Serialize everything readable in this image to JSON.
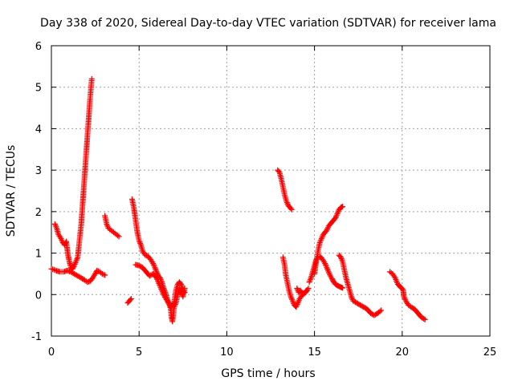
{
  "chart_data": {
    "type": "scatter",
    "title": "Day 338 of 2020, Sidereal Day-to-day VTEC variation (SDTVAR) for receiver lama",
    "xlabel": "GPS time / hours",
    "ylabel": "SDTVAR / TECUs",
    "xlim": [
      0,
      25
    ],
    "ylim": [
      -1,
      6
    ],
    "xticks": [
      "0",
      "5",
      "10",
      "15",
      "20",
      "25"
    ],
    "yticks": [
      "-1",
      "0",
      "1",
      "2",
      "3",
      "4",
      "5",
      "6"
    ],
    "xtick_values": [
      0,
      5,
      10,
      15,
      20,
      25
    ],
    "ytick_values": [
      -1,
      0,
      1,
      2,
      3,
      4,
      5,
      6
    ],
    "grid": true,
    "marker": "+",
    "color": "#ff0000",
    "segments": [
      [
        [
          0.0,
          0.62
        ],
        [
          0.15,
          0.6
        ],
        [
          0.3,
          0.57
        ],
        [
          0.5,
          0.55
        ],
        [
          0.7,
          0.55
        ],
        [
          0.9,
          0.58
        ],
        [
          1.1,
          0.55
        ],
        [
          1.3,
          0.5
        ],
        [
          1.5,
          0.45
        ],
        [
          1.7,
          0.4
        ],
        [
          1.9,
          0.35
        ],
        [
          2.05,
          0.3
        ],
        [
          2.2,
          0.32
        ],
        [
          2.35,
          0.4
        ],
        [
          2.5,
          0.5
        ],
        [
          2.6,
          0.58
        ],
        [
          2.75,
          0.55
        ],
        [
          2.9,
          0.5
        ],
        [
          3.05,
          0.47
        ]
      ],
      [
        [
          0.2,
          1.7
        ],
        [
          0.3,
          1.6
        ],
        [
          0.4,
          1.45
        ],
        [
          0.55,
          1.35
        ],
        [
          0.65,
          1.25
        ],
        [
          0.75,
          1.2
        ],
        [
          0.85,
          1.28
        ],
        [
          0.9,
          1.1
        ],
        [
          0.95,
          0.95
        ],
        [
          1.0,
          0.85
        ],
        [
          1.05,
          0.75
        ],
        [
          1.12,
          0.65
        ],
        [
          1.2,
          0.62
        ],
        [
          1.3,
          0.7
        ],
        [
          1.4,
          0.8
        ],
        [
          1.5,
          0.9
        ],
        [
          1.55,
          1.1
        ],
        [
          1.6,
          1.3
        ],
        [
          1.65,
          1.5
        ],
        [
          1.7,
          1.7
        ],
        [
          1.75,
          2.0
        ],
        [
          1.8,
          2.3
        ],
        [
          1.85,
          2.6
        ],
        [
          1.9,
          2.9
        ],
        [
          1.95,
          3.2
        ],
        [
          2.0,
          3.5
        ],
        [
          2.05,
          3.8
        ],
        [
          2.1,
          4.1
        ],
        [
          2.15,
          4.4
        ],
        [
          2.2,
          4.7
        ],
        [
          2.25,
          4.95
        ],
        [
          2.3,
          5.2
        ]
      ],
      [
        [
          3.05,
          1.9
        ],
        [
          3.15,
          1.7
        ],
        [
          3.25,
          1.6
        ],
        [
          3.4,
          1.55
        ],
        [
          3.55,
          1.5
        ],
        [
          3.7,
          1.45
        ],
        [
          3.85,
          1.4
        ]
      ],
      [
        [
          4.35,
          -0.2
        ],
        [
          4.45,
          -0.15
        ],
        [
          4.55,
          -0.1
        ]
      ],
      [
        [
          4.6,
          2.3
        ],
        [
          4.7,
          2.1
        ],
        [
          4.8,
          1.8
        ],
        [
          4.9,
          1.5
        ],
        [
          5.0,
          1.3
        ],
        [
          5.1,
          1.2
        ],
        [
          5.2,
          1.05
        ],
        [
          5.35,
          0.95
        ],
        [
          5.5,
          0.93
        ],
        [
          5.65,
          0.85
        ],
        [
          5.8,
          0.75
        ],
        [
          5.9,
          0.65
        ],
        [
          6.0,
          0.55
        ],
        [
          6.1,
          0.45
        ],
        [
          6.2,
          0.4
        ],
        [
          6.3,
          0.3
        ],
        [
          6.4,
          0.15
        ],
        [
          6.5,
          0.05
        ],
        [
          6.6,
          -0.1
        ],
        [
          6.7,
          -0.2
        ],
        [
          6.8,
          -0.35
        ],
        [
          6.85,
          -0.55
        ],
        [
          6.9,
          -0.65
        ],
        [
          6.95,
          -0.5
        ],
        [
          7.0,
          -0.3
        ],
        [
          7.1,
          -0.2
        ],
        [
          7.2,
          0.0
        ],
        [
          7.3,
          0.15
        ],
        [
          7.4,
          0.05
        ],
        [
          7.5,
          -0.05
        ],
        [
          7.6,
          0.15
        ]
      ],
      [
        [
          4.8,
          0.72
        ],
        [
          5.0,
          0.7
        ],
        [
          5.2,
          0.65
        ],
        [
          5.4,
          0.55
        ],
        [
          5.6,
          0.45
        ],
        [
          5.8,
          0.5
        ],
        [
          6.0,
          0.4
        ],
        [
          6.2,
          0.2
        ],
        [
          6.4,
          0.0
        ],
        [
          6.6,
          -0.15
        ],
        [
          6.8,
          -0.3
        ],
        [
          7.0,
          -0.2
        ],
        [
          7.1,
          0.1
        ],
        [
          7.2,
          0.25
        ],
        [
          7.3,
          0.3
        ],
        [
          7.4,
          0.25
        ],
        [
          7.5,
          0.1
        ],
        [
          7.6,
          0.05
        ]
      ],
      [
        [
          12.9,
          3.0
        ],
        [
          13.0,
          2.95
        ],
        [
          13.1,
          2.8
        ],
        [
          13.2,
          2.6
        ],
        [
          13.3,
          2.4
        ],
        [
          13.4,
          2.25
        ],
        [
          13.5,
          2.15
        ],
        [
          13.6,
          2.1
        ],
        [
          13.7,
          2.05
        ]
      ],
      [
        [
          13.2,
          0.9
        ],
        [
          13.3,
          0.7
        ],
        [
          13.35,
          0.5
        ],
        [
          13.45,
          0.3
        ],
        [
          13.55,
          0.1
        ],
        [
          13.65,
          -0.05
        ],
        [
          13.75,
          -0.15
        ],
        [
          13.85,
          -0.25
        ],
        [
          13.95,
          -0.3
        ],
        [
          14.05,
          -0.2
        ],
        [
          14.15,
          -0.1
        ],
        [
          14.3,
          0.0
        ],
        [
          14.45,
          0.05
        ],
        [
          14.55,
          0.1
        ]
      ],
      [
        [
          14.0,
          0.15
        ],
        [
          14.1,
          0.05
        ],
        [
          14.2,
          0.1
        ],
        [
          14.35,
          0.0
        ],
        [
          14.5,
          0.05
        ],
        [
          14.65,
          0.15
        ]
      ],
      [
        [
          14.7,
          0.3
        ],
        [
          14.8,
          0.4
        ],
        [
          14.9,
          0.55
        ],
        [
          15.0,
          0.7
        ],
        [
          15.1,
          0.85
        ],
        [
          15.2,
          0.92
        ],
        [
          15.3,
          0.92
        ],
        [
          15.4,
          0.88
        ],
        [
          15.5,
          0.82
        ],
        [
          15.6,
          0.75
        ],
        [
          15.7,
          0.65
        ],
        [
          15.8,
          0.55
        ],
        [
          15.9,
          0.45
        ],
        [
          16.0,
          0.38
        ],
        [
          16.1,
          0.3
        ],
        [
          16.2,
          0.25
        ],
        [
          16.3,
          0.22
        ],
        [
          16.4,
          0.2
        ],
        [
          16.5,
          0.18
        ],
        [
          16.6,
          0.16
        ]
      ],
      [
        [
          15.0,
          0.5
        ],
        [
          15.1,
          0.8
        ],
        [
          15.2,
          1.05
        ],
        [
          15.3,
          1.25
        ],
        [
          15.4,
          1.35
        ],
        [
          15.5,
          1.45
        ],
        [
          15.6,
          1.5
        ],
        [
          15.7,
          1.55
        ],
        [
          15.8,
          1.65
        ],
        [
          15.9,
          1.7
        ],
        [
          16.0,
          1.75
        ],
        [
          16.1,
          1.8
        ],
        [
          16.2,
          1.85
        ],
        [
          16.3,
          1.95
        ],
        [
          16.4,
          2.05
        ],
        [
          16.5,
          2.1
        ],
        [
          16.6,
          2.12
        ]
      ],
      [
        [
          16.4,
          0.95
        ],
        [
          16.5,
          0.9
        ],
        [
          16.6,
          0.8
        ],
        [
          16.7,
          0.6
        ],
        [
          16.8,
          0.4
        ],
        [
          16.9,
          0.25
        ],
        [
          17.0,
          0.1
        ],
        [
          17.1,
          -0.05
        ],
        [
          17.2,
          -0.15
        ],
        [
          17.4,
          -0.2
        ],
        [
          17.6,
          -0.25
        ],
        [
          17.8,
          -0.3
        ],
        [
          18.0,
          -0.35
        ],
        [
          18.2,
          -0.45
        ],
        [
          18.4,
          -0.5
        ],
        [
          18.6,
          -0.45
        ],
        [
          18.8,
          -0.38
        ]
      ],
      [
        [
          19.3,
          0.55
        ],
        [
          19.45,
          0.5
        ],
        [
          19.6,
          0.4
        ],
        [
          19.75,
          0.25
        ],
        [
          19.9,
          0.18
        ],
        [
          20.05,
          0.12
        ],
        [
          20.1,
          -0.05
        ],
        [
          20.2,
          -0.15
        ],
        [
          20.35,
          -0.25
        ],
        [
          20.5,
          -0.3
        ],
        [
          20.7,
          -0.35
        ],
        [
          20.9,
          -0.45
        ],
        [
          21.1,
          -0.55
        ],
        [
          21.3,
          -0.6
        ]
      ]
    ]
  }
}
